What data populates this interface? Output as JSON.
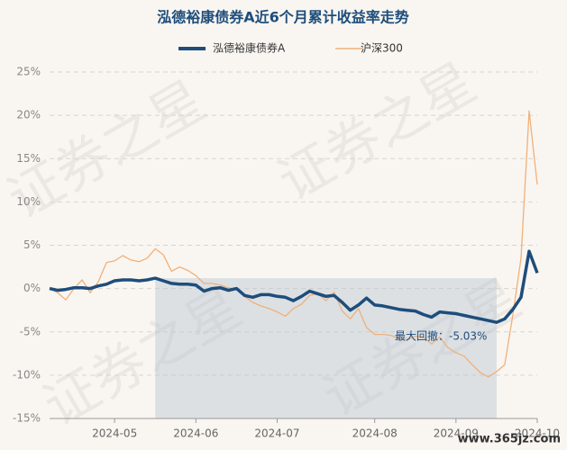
{
  "chart_data": {
    "type": "line",
    "title": "泓德裕康债券A近6个月累计收益率走势",
    "categories": [
      null,
      null,
      null,
      null,
      null,
      null,
      null,
      null,
      "2024-05",
      null,
      null,
      null,
      null,
      null,
      null,
      null,
      null,
      null,
      "2024-06",
      null,
      null,
      null,
      null,
      null,
      null,
      null,
      null,
      null,
      "2024-07",
      null,
      null,
      null,
      null,
      null,
      null,
      null,
      null,
      null,
      null,
      null,
      "2024-08",
      null,
      null,
      null,
      null,
      null,
      null,
      null,
      null,
      null,
      "2024-09",
      null,
      null,
      null,
      null,
      null,
      null,
      null,
      null,
      null,
      "2024-10"
    ],
    "series": [
      {
        "name": "泓德裕康债券A",
        "color": "#1e4d7b",
        "values": [
          0,
          -0.2,
          -0.1,
          0.1,
          0.1,
          0,
          0.3,
          0.5,
          0.9,
          1.0,
          1.0,
          0.9,
          1.0,
          1.2,
          0.9,
          0.6,
          0.5,
          0.5,
          0.4,
          -0.3,
          0,
          0.1,
          -0.2,
          0,
          -0.8,
          -1.0,
          -0.7,
          -0.7,
          -0.9,
          -1.0,
          -1.4,
          -0.9,
          -0.3,
          -0.6,
          -0.9,
          -0.8,
          -1.6,
          -2.5,
          -1.9,
          -1.1,
          -1.9,
          -2.0,
          -2.2,
          -2.4,
          -2.5,
          -2.6,
          -3.0,
          -3.3,
          -2.7,
          -2.8,
          -2.9,
          -3.1,
          -3.3,
          -3.5,
          -3.7,
          -3.9,
          -3.5,
          -2.4,
          -1.0,
          4.3,
          1.8
        ]
      },
      {
        "name": "沪深300",
        "color": "#f0b07a",
        "values": [
          0,
          -0.5,
          -1.3,
          0,
          1,
          -0.5,
          0.8,
          3,
          3.2,
          3.8,
          3.3,
          3.1,
          3.5,
          4.6,
          3.9,
          2.0,
          2.5,
          2.1,
          1.5,
          0.6,
          0.6,
          0.4,
          0.1,
          -0.1,
          -0.9,
          -1.6,
          -2.0,
          -2.3,
          -2.7,
          -3.2,
          -2.3,
          -1.8,
          -0.8,
          -0.6,
          -1.4,
          -0.4,
          -2.6,
          -3.5,
          -2.3,
          -4.5,
          -5.3,
          -5.3,
          -5.4,
          -5.8,
          -5.9,
          -5.5,
          -5.6,
          -6.4,
          -5.6,
          -6.8,
          -7.4,
          -7.8,
          -8.8,
          -9.7,
          -10.2,
          -9.6,
          -8.8,
          -3.0,
          3.5,
          20.5,
          12.0
        ]
      }
    ],
    "ylim": [
      -15,
      25
    ],
    "yticks": [
      {
        "value": -15,
        "label": "-15%"
      },
      {
        "value": -10,
        "label": "-10%"
      },
      {
        "value": -5,
        "label": "-5%"
      },
      {
        "value": 0,
        "label": "0%"
      },
      {
        "value": 5,
        "label": "5%"
      },
      {
        "value": 10,
        "label": "10%"
      },
      {
        "value": 15,
        "label": "15%"
      },
      {
        "value": 20,
        "label": "20%"
      },
      {
        "value": 25,
        "label": "25%"
      }
    ],
    "grid": true,
    "annotation": "最大回撤：-5.03%",
    "watermark": "证券之星",
    "source": "www.365jz.com"
  }
}
